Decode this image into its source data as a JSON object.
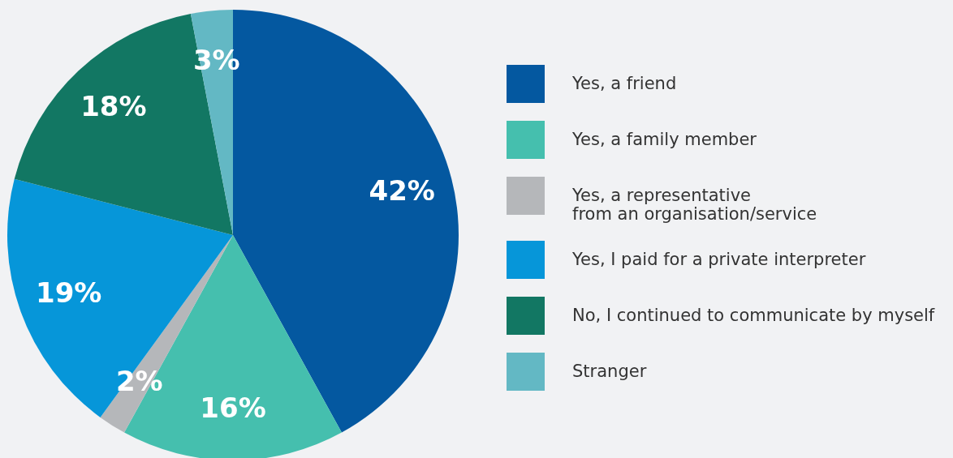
{
  "chart_data": {
    "type": "pie",
    "categories": [
      "Yes, a friend",
      "Yes, a family member",
      "Yes, a representative\nfrom an organisation/service",
      "Yes, I paid for a private interpreter",
      "No, I continued to communicate by myself",
      "Stranger"
    ],
    "values": [
      42,
      16,
      2,
      19,
      18,
      3
    ],
    "colors": [
      "#0458a0",
      "#45bfae",
      "#b5b7ba",
      "#0696d9",
      "#127763",
      "#63b8c4"
    ],
    "value_labels": [
      "42%",
      "16%",
      "2%",
      "19%",
      "18%",
      "3%"
    ],
    "legend": "right"
  }
}
